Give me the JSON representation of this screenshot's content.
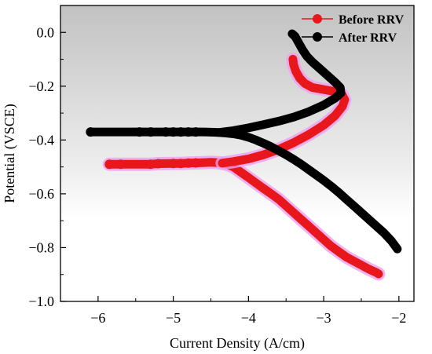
{
  "chart_data": {
    "type": "scatter",
    "title": "",
    "xlabel": "Current Density (A/cm)",
    "ylabel": "Potential (VSCE)",
    "xlim": [
      -6.5,
      -1.8
    ],
    "ylim": [
      -1.0,
      0.1
    ],
    "xticks": [
      -6,
      -5,
      -4,
      -3,
      -2
    ],
    "yticks": [
      0.0,
      -0.2,
      -0.4,
      -0.6,
      -0.8,
      -1.0
    ],
    "xtick_labels": [
      "−6",
      "−5",
      "−4",
      "−3",
      "−2"
    ],
    "ytick_labels": [
      "0.0",
      "−0.2",
      "−0.4",
      "−0.6",
      "−0.8",
      "−1.0"
    ],
    "grid": false,
    "legend_position": "top-right",
    "series": [
      {
        "name": "Before RRV",
        "color": "#e8171b",
        "glow": "#f0a0f0",
        "cathodic": [
          [
            -5.85,
            -0.49
          ],
          [
            -5.7,
            -0.49
          ],
          [
            -5.3,
            -0.49
          ],
          [
            -5.2,
            -0.488
          ],
          [
            -5.0,
            -0.487
          ],
          [
            -4.9,
            -0.487
          ],
          [
            -4.8,
            -0.486
          ],
          [
            -4.7,
            -0.485
          ],
          [
            -4.6,
            -0.484
          ],
          [
            -4.5,
            -0.483
          ],
          [
            -4.4,
            -0.484
          ],
          [
            -4.3,
            -0.489
          ],
          [
            -4.2,
            -0.5
          ],
          [
            -4.1,
            -0.52
          ],
          [
            -4.0,
            -0.54
          ],
          [
            -3.9,
            -0.56
          ],
          [
            -3.8,
            -0.58
          ],
          [
            -3.7,
            -0.6
          ],
          [
            -3.6,
            -0.62
          ],
          [
            -3.5,
            -0.645
          ],
          [
            -3.4,
            -0.67
          ],
          [
            -3.3,
            -0.695
          ],
          [
            -3.2,
            -0.72
          ],
          [
            -3.1,
            -0.745
          ],
          [
            -3.0,
            -0.77
          ],
          [
            -2.9,
            -0.795
          ],
          [
            -2.8,
            -0.815
          ],
          [
            -2.7,
            -0.835
          ],
          [
            -2.6,
            -0.85
          ],
          [
            -2.5,
            -0.865
          ],
          [
            -2.4,
            -0.88
          ],
          [
            -2.3,
            -0.893
          ],
          [
            -2.27,
            -0.898
          ]
        ],
        "anodic": [
          [
            -4.35,
            -0.486
          ],
          [
            -4.2,
            -0.48
          ],
          [
            -4.0,
            -0.47
          ],
          [
            -3.8,
            -0.455
          ],
          [
            -3.6,
            -0.435
          ],
          [
            -3.4,
            -0.41
          ],
          [
            -3.2,
            -0.38
          ],
          [
            -3.0,
            -0.345
          ],
          [
            -2.85,
            -0.31
          ],
          [
            -2.75,
            -0.275
          ],
          [
            -2.72,
            -0.25
          ],
          [
            -2.76,
            -0.23
          ],
          [
            -2.85,
            -0.22
          ],
          [
            -2.95,
            -0.215
          ],
          [
            -3.05,
            -0.21
          ],
          [
            -3.15,
            -0.205
          ],
          [
            -3.25,
            -0.19
          ],
          [
            -3.32,
            -0.17
          ],
          [
            -3.37,
            -0.145
          ],
          [
            -3.4,
            -0.12
          ],
          [
            -3.41,
            -0.1
          ]
        ]
      },
      {
        "name": "After RRV",
        "color": "#000000",
        "glow": "#000000",
        "cathodic": [
          [
            -6.1,
            -0.37
          ],
          [
            -5.45,
            -0.37
          ],
          [
            -5.3,
            -0.37
          ],
          [
            -5.1,
            -0.37
          ],
          [
            -5.0,
            -0.37
          ],
          [
            -4.9,
            -0.37
          ],
          [
            -4.8,
            -0.37
          ],
          [
            -4.7,
            -0.37
          ],
          [
            -4.6,
            -0.37
          ],
          [
            -4.5,
            -0.371
          ],
          [
            -4.4,
            -0.372
          ],
          [
            -4.3,
            -0.374
          ],
          [
            -4.2,
            -0.377
          ],
          [
            -4.1,
            -0.382
          ],
          [
            -4.0,
            -0.39
          ],
          [
            -3.9,
            -0.4
          ],
          [
            -3.8,
            -0.412
          ],
          [
            -3.7,
            -0.425
          ],
          [
            -3.6,
            -0.44
          ],
          [
            -3.5,
            -0.455
          ],
          [
            -3.4,
            -0.472
          ],
          [
            -3.3,
            -0.49
          ],
          [
            -3.2,
            -0.51
          ],
          [
            -3.1,
            -0.53
          ],
          [
            -3.0,
            -0.55
          ],
          [
            -2.9,
            -0.572
          ],
          [
            -2.8,
            -0.595
          ],
          [
            -2.7,
            -0.62
          ],
          [
            -2.6,
            -0.645
          ],
          [
            -2.5,
            -0.67
          ],
          [
            -2.4,
            -0.695
          ],
          [
            -2.3,
            -0.72
          ],
          [
            -2.2,
            -0.745
          ],
          [
            -2.1,
            -0.775
          ],
          [
            -2.02,
            -0.805
          ]
        ],
        "anodic": [
          [
            -4.4,
            -0.372
          ],
          [
            -4.2,
            -0.365
          ],
          [
            -4.0,
            -0.355
          ],
          [
            -3.8,
            -0.343
          ],
          [
            -3.6,
            -0.33
          ],
          [
            -3.4,
            -0.315
          ],
          [
            -3.2,
            -0.295
          ],
          [
            -3.0,
            -0.27
          ],
          [
            -2.85,
            -0.245
          ],
          [
            -2.77,
            -0.225
          ],
          [
            -2.78,
            -0.205
          ],
          [
            -2.85,
            -0.185
          ],
          [
            -2.95,
            -0.16
          ],
          [
            -3.05,
            -0.135
          ],
          [
            -3.15,
            -0.11
          ],
          [
            -3.22,
            -0.09
          ],
          [
            -3.28,
            -0.065
          ],
          [
            -3.33,
            -0.04
          ],
          [
            -3.38,
            -0.015
          ],
          [
            -3.42,
            -0.005
          ]
        ]
      }
    ]
  }
}
